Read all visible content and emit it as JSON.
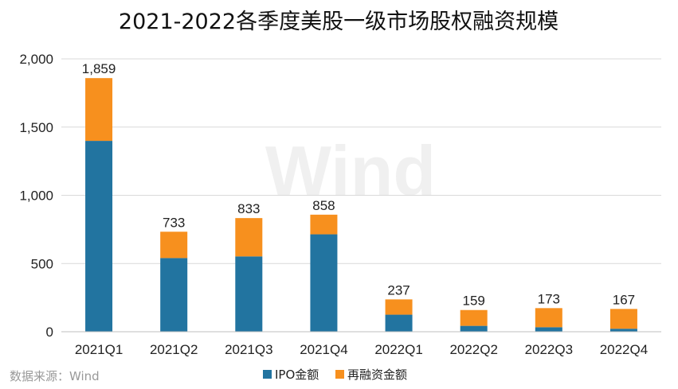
{
  "chart_data": {
    "type": "bar",
    "stacked": true,
    "title": "2021-2022各季度美股一级市场股权融资规模",
    "categories": [
      "2021Q1",
      "2021Q2",
      "2021Q3",
      "2021Q4",
      "2022Q1",
      "2022Q2",
      "2022Q3",
      "2022Q4"
    ],
    "series": [
      {
        "name": "IPO金额",
        "color": "#2274A0",
        "values": [
          1399,
          540,
          552,
          714,
          125,
          43,
          33,
          22
        ]
      },
      {
        "name": "再融资金额",
        "color": "#F7901E",
        "values": [
          460,
          193,
          281,
          144,
          112,
          116,
          140,
          145
        ]
      }
    ],
    "totals": [
      1859,
      733,
      833,
      858,
      237,
      159,
      173,
      167
    ],
    "total_labels": [
      "1,859",
      "733",
      "833",
      "858",
      "237",
      "159",
      "173",
      "167"
    ],
    "ylim": [
      0,
      2000
    ],
    "yticks": [
      0,
      500,
      1000,
      1500,
      2000
    ],
    "ytick_labels": [
      "0",
      "500",
      "1,000",
      "1,500",
      "2,000"
    ],
    "grid": true,
    "legend_position": "bottom"
  },
  "source": "数据来源：Wind",
  "watermark": "Wind"
}
